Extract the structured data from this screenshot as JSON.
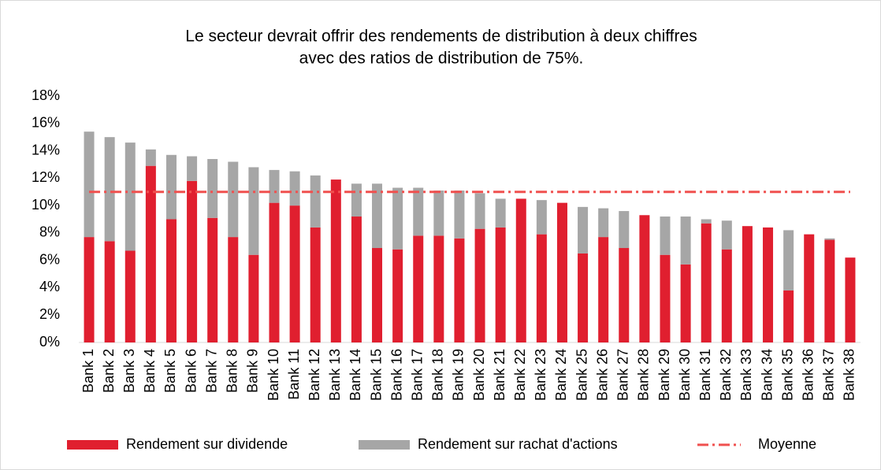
{
  "chart_data": {
    "type": "stacked_bar",
    "title": [
      "Le secteur devrait offrir des rendements de distribution à deux chiffres",
      "avec des ratios de distribution de 75%."
    ],
    "categories": [
      "Bank 1",
      "Bank 2",
      "Bank 3",
      "Bank 4",
      "Bank 5",
      "Bank 6",
      "Bank 7",
      "Bank 8",
      "Bank 9",
      "Bank 10",
      "Bank 11",
      "Bank 12",
      "Bank 13",
      "Bank 14",
      "Bank 15",
      "Bank 16",
      "Bank 17",
      "Bank 18",
      "Bank 19",
      "Bank 20",
      "Bank 21",
      "Bank 22",
      "Bank 23",
      "Bank 24",
      "Bank 25",
      "Bank 26",
      "Bank 27",
      "Bank 28",
      "Bank 29",
      "Bank 30",
      "Bank 31",
      "Bank 32",
      "Bank 33",
      "Bank 34",
      "Bank 35",
      "Bank 36",
      "Bank 37",
      "Bank 38"
    ],
    "series": [
      {
        "name": "Rendement sur dividende",
        "color": "#e01f2f",
        "type": "bar",
        "values": [
          7.7,
          7.4,
          6.7,
          12.9,
          9.0,
          11.8,
          9.1,
          7.7,
          6.4,
          10.2,
          10.0,
          8.4,
          11.9,
          9.2,
          6.9,
          6.8,
          7.8,
          7.8,
          7.6,
          8.3,
          8.4,
          10.5,
          7.9,
          10.2,
          6.5,
          7.7,
          6.9,
          9.3,
          6.4,
          5.7,
          8.7,
          6.8,
          8.5,
          8.4,
          3.8,
          7.9,
          7.5,
          6.2
        ]
      },
      {
        "name": "Rendement sur rachat d'actions",
        "color": "#a6a6a6",
        "type": "bar",
        "values": [
          7.7,
          7.6,
          7.9,
          1.2,
          4.7,
          1.8,
          4.3,
          5.5,
          6.4,
          2.4,
          2.5,
          3.8,
          0,
          2.4,
          4.7,
          4.5,
          3.5,
          3.3,
          3.5,
          2.6,
          2.1,
          0,
          2.5,
          0,
          3.4,
          2.1,
          2.7,
          0,
          2.8,
          3.5,
          0.3,
          2.1,
          0,
          0,
          4.4,
          0,
          0.1,
          0
        ]
      },
      {
        "name": "Moyenne",
        "color": "#f0504f",
        "type": "line",
        "values": [
          11,
          11,
          11,
          11,
          11,
          11,
          11,
          11,
          11,
          11,
          11,
          11,
          11,
          11,
          11,
          11,
          11,
          11,
          11,
          11,
          11,
          11,
          11,
          11,
          11,
          11,
          11,
          11,
          11,
          11,
          11,
          11,
          11,
          11,
          11,
          11,
          11,
          11
        ]
      }
    ],
    "ylim": [
      0,
      18
    ],
    "yticks": [
      {
        "value": 0,
        "label": "0%"
      },
      {
        "value": 2,
        "label": "2%"
      },
      {
        "value": 4,
        "label": "4%"
      },
      {
        "value": 6,
        "label": "6%"
      },
      {
        "value": 8,
        "label": "8%"
      },
      {
        "value": 10,
        "label": "10%"
      },
      {
        "value": 12,
        "label": "12%"
      },
      {
        "value": 14,
        "label": "14%"
      },
      {
        "value": 16,
        "label": "16%"
      },
      {
        "value": 18,
        "label": "18%"
      }
    ],
    "legend": "bottom"
  }
}
